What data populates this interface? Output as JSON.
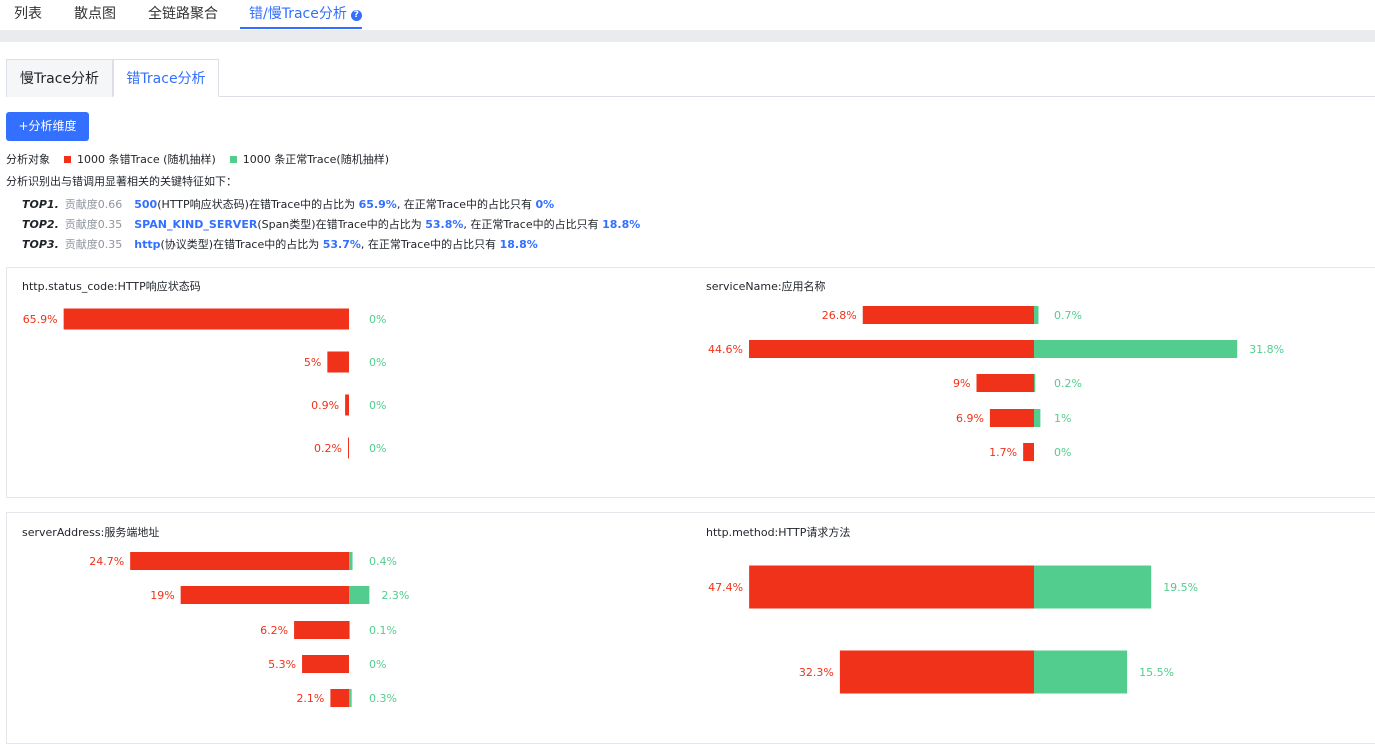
{
  "top_tabs": {
    "list": "列表",
    "scatter": "散点图",
    "full_chain": "全链路聚合",
    "error_slow": "错/慢Trace分析",
    "help": "?"
  },
  "sub_tabs": {
    "slow": "慢Trace分析",
    "error": "错Trace分析"
  },
  "add_dimension_button": "+分析维度",
  "analysis_object": {
    "label": "分析对象",
    "error_legend": "1000 条错Trace (随机抽样)",
    "normal_legend": "1000 条正常Trace(随机抽样)"
  },
  "colors": {
    "error": "#f0321a",
    "normal": "#52cd8e",
    "accent": "#3370ff"
  },
  "intro_text": "分析识别出与错调用显著相关的关键特征如下：",
  "top_features": [
    {
      "rank": "TOP1.",
      "contribution": "贡献度0.66",
      "key": "500",
      "key_desc": "(HTTP响应状态码)在错Trace中的占比为 ",
      "error_pct": "65.9%",
      "mid": ", 在正常Trace中的占比只有 ",
      "normal_pct": "0%"
    },
    {
      "rank": "TOP2.",
      "contribution": "贡献度0.35",
      "key": "SPAN_KIND_SERVER",
      "key_desc": "(Span类型)在错Trace中的占比为 ",
      "error_pct": "53.8%",
      "mid": ", 在正常Trace中的占比只有 ",
      "normal_pct": "18.8%"
    },
    {
      "rank": "TOP3.",
      "contribution": "贡献度0.35",
      "key": "http",
      "key_desc": "(协议类型)在错Trace中的占比为 ",
      "error_pct": "53.7%",
      "mid": ", 在正常Trace中的占比只有 ",
      "normal_pct": "18.8%"
    }
  ],
  "chart_data": [
    {
      "type": "bar",
      "title": "http.status_code:HTTP响应状态码",
      "series": [
        {
          "values": [
            65.9,
            5,
            0.9,
            0.2
          ],
          "labels": [
            "65.9%",
            "5%",
            "0.9%",
            "0.2%"
          ]
        },
        {
          "values": [
            0,
            0,
            0,
            0
          ],
          "labels": [
            "0%",
            "0%",
            "0%",
            "0%"
          ]
        }
      ]
    },
    {
      "type": "bar",
      "title": "serviceName:应用名称",
      "series": [
        {
          "values": [
            26.8,
            44.6,
            9,
            6.9,
            1.7
          ],
          "labels": [
            "26.8%",
            "44.6%",
            "9%",
            "6.9%",
            "1.7%"
          ]
        },
        {
          "values": [
            0.7,
            31.8,
            0.2,
            1,
            0
          ],
          "labels": [
            "0.7%",
            "31.8%",
            "0.2%",
            "1%",
            "0%"
          ]
        }
      ]
    },
    {
      "type": "bar",
      "title": "serverAddress:服务端地址",
      "series": [
        {
          "values": [
            24.7,
            19,
            6.2,
            5.3,
            2.1
          ],
          "labels": [
            "24.7%",
            "19%",
            "6.2%",
            "5.3%",
            "2.1%"
          ]
        },
        {
          "values": [
            0.4,
            2.3,
            0.1,
            0,
            0.3
          ],
          "labels": [
            "0.4%",
            "2.3%",
            "0.1%",
            "0%",
            "0.3%"
          ]
        }
      ]
    },
    {
      "type": "bar",
      "title": "http.method:HTTP请求方法",
      "series": [
        {
          "values": [
            47.4,
            32.3
          ],
          "labels": [
            "47.4%",
            "32.3%"
          ]
        },
        {
          "values": [
            19.5,
            15.5
          ],
          "labels": [
            "19.5%",
            "15.5%"
          ]
        }
      ]
    }
  ]
}
